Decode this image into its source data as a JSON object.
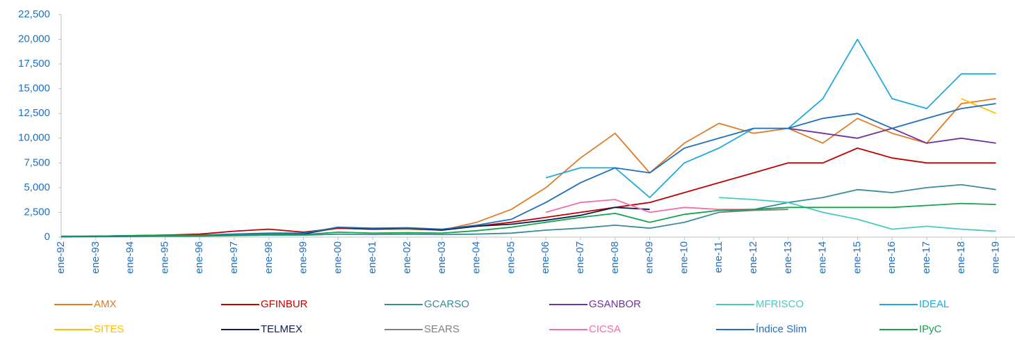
{
  "chart_data": {
    "type": "line",
    "categories": [
      "ene-92",
      "ene-93",
      "ene-94",
      "ene-95",
      "ene-96",
      "ene-97",
      "ene-98",
      "ene-99",
      "ene-00",
      "ene-01",
      "ene-02",
      "ene-03",
      "ene-04",
      "ene-05",
      "ene-06",
      "ene-07",
      "ene-08",
      "ene-09",
      "ene-10",
      "ene-11",
      "ene-12",
      "ene-13",
      "ene-14",
      "ene-15",
      "ene-16",
      "ene-17",
      "ene-18",
      "ene-19"
    ],
    "ylim": [
      0,
      22500
    ],
    "yticks": [
      0,
      {
        "value": 2500,
        "label": "2,500"
      },
      {
        "value": 5000,
        "label": "5,000"
      },
      {
        "value": 7500,
        "label": "7,500"
      },
      {
        "value": 10000,
        "label": "10,000"
      },
      {
        "value": 12500,
        "label": "12,500"
      },
      {
        "value": 15000,
        "label": "15,000"
      },
      {
        "value": 17500,
        "label": "17,500"
      },
      {
        "value": 20000,
        "label": "20,000"
      },
      {
        "value": 22500,
        "label": "22,500"
      }
    ],
    "grid": false,
    "legend": "bottom",
    "series": [
      {
        "name": "AMX",
        "color": "#e07b26",
        "values": [
          50,
          80,
          150,
          150,
          150,
          250,
          350,
          350,
          900,
          800,
          800,
          700,
          1500,
          2800,
          5000,
          8000,
          10500,
          6500,
          9500,
          11500,
          10500,
          11000,
          9500,
          12000,
          10500,
          9500,
          13500,
          14000
        ]
      },
      {
        "name": "GFINBUR",
        "color": "#c00000",
        "values": [
          50,
          100,
          150,
          200,
          300,
          600,
          800,
          500,
          900,
          800,
          900,
          700,
          1100,
          1500,
          2000,
          2500,
          3000,
          3500,
          4500,
          5500,
          6500,
          7500,
          7500,
          9000,
          8000,
          7500,
          7500,
          7500
        ]
      },
      {
        "name": "GCARSO",
        "color": "#3a8a9a",
        "values": [
          30,
          50,
          80,
          100,
          100,
          150,
          200,
          200,
          300,
          250,
          300,
          250,
          300,
          400,
          700,
          900,
          1200,
          900,
          1500,
          2500,
          2800,
          3500,
          4000,
          4800,
          4500,
          5000,
          5300,
          4800
        ]
      },
      {
        "name": "GSANBOR",
        "color": "#7030a0",
        "values": [
          null,
          null,
          null,
          null,
          null,
          null,
          null,
          null,
          null,
          null,
          null,
          null,
          null,
          null,
          null,
          null,
          null,
          null,
          null,
          null,
          null,
          11000,
          10500,
          10000,
          11000,
          9500,
          10000,
          9500
        ]
      },
      {
        "name": "MFRISCO",
        "color": "#48c9c0",
        "values": [
          null,
          null,
          null,
          null,
          null,
          null,
          null,
          null,
          null,
          null,
          null,
          null,
          null,
          null,
          null,
          null,
          null,
          null,
          null,
          4000,
          3800,
          3500,
          2500,
          1800,
          800,
          1100,
          800,
          600
        ]
      },
      {
        "name": "IDEAL",
        "color": "#1fa8e0",
        "values": [
          null,
          null,
          null,
          null,
          null,
          null,
          null,
          null,
          null,
          null,
          null,
          null,
          null,
          null,
          6000,
          7000,
          7000,
          4000,
          7500,
          9000,
          11000,
          11000,
          14000,
          20000,
          14000,
          13000,
          16500,
          16500
        ]
      },
      {
        "name": "SITES",
        "color": "#ffc000",
        "values": [
          null,
          null,
          null,
          null,
          null,
          null,
          null,
          null,
          null,
          null,
          null,
          null,
          null,
          null,
          null,
          null,
          null,
          null,
          null,
          null,
          null,
          null,
          null,
          null,
          null,
          null,
          14000,
          12500
        ]
      },
      {
        "name": "TELMEX",
        "color": "#0e1f4d",
        "values": [
          50,
          80,
          120,
          150,
          150,
          200,
          300,
          300,
          1000,
          800,
          900,
          700,
          1100,
          1300,
          1700,
          2200,
          3000,
          2800,
          null,
          null,
          null,
          null,
          null,
          null,
          null,
          null,
          null,
          null
        ]
      },
      {
        "name": "SEARS",
        "color": "#808080",
        "values": [
          null,
          null,
          null,
          null,
          null,
          null,
          null,
          null,
          null,
          null,
          null,
          null,
          null,
          null,
          null,
          null,
          null,
          null,
          null,
          2500,
          2700,
          2800,
          null,
          null,
          null,
          null,
          null,
          null
        ]
      },
      {
        "name": "CICSA",
        "color": "#f06eaa",
        "values": [
          null,
          null,
          null,
          null,
          null,
          null,
          null,
          null,
          null,
          null,
          null,
          null,
          null,
          null,
          2500,
          3500,
          3800,
          2500,
          3000,
          2800,
          2800,
          null,
          null,
          null,
          null,
          null,
          null,
          null
        ]
      },
      {
        "name": "Índice Slim",
        "color": "#1e6fbf",
        "values": [
          50,
          100,
          150,
          200,
          200,
          300,
          400,
          400,
          1000,
          900,
          950,
          800,
          1200,
          1800,
          3500,
          5500,
          7000,
          6500,
          9000,
          10000,
          11000,
          11000,
          12000,
          12500,
          11000,
          12000,
          13000,
          13500
        ]
      },
      {
        "name": "IPyC",
        "color": "#16a34a",
        "values": [
          100,
          100,
          150,
          150,
          150,
          200,
          300,
          250,
          500,
          400,
          450,
          400,
          650,
          1000,
          1500,
          2000,
          2400,
          1500,
          2300,
          2700,
          2800,
          3000,
          3000,
          3000,
          3000,
          3200,
          3400,
          3300
        ]
      }
    ]
  }
}
